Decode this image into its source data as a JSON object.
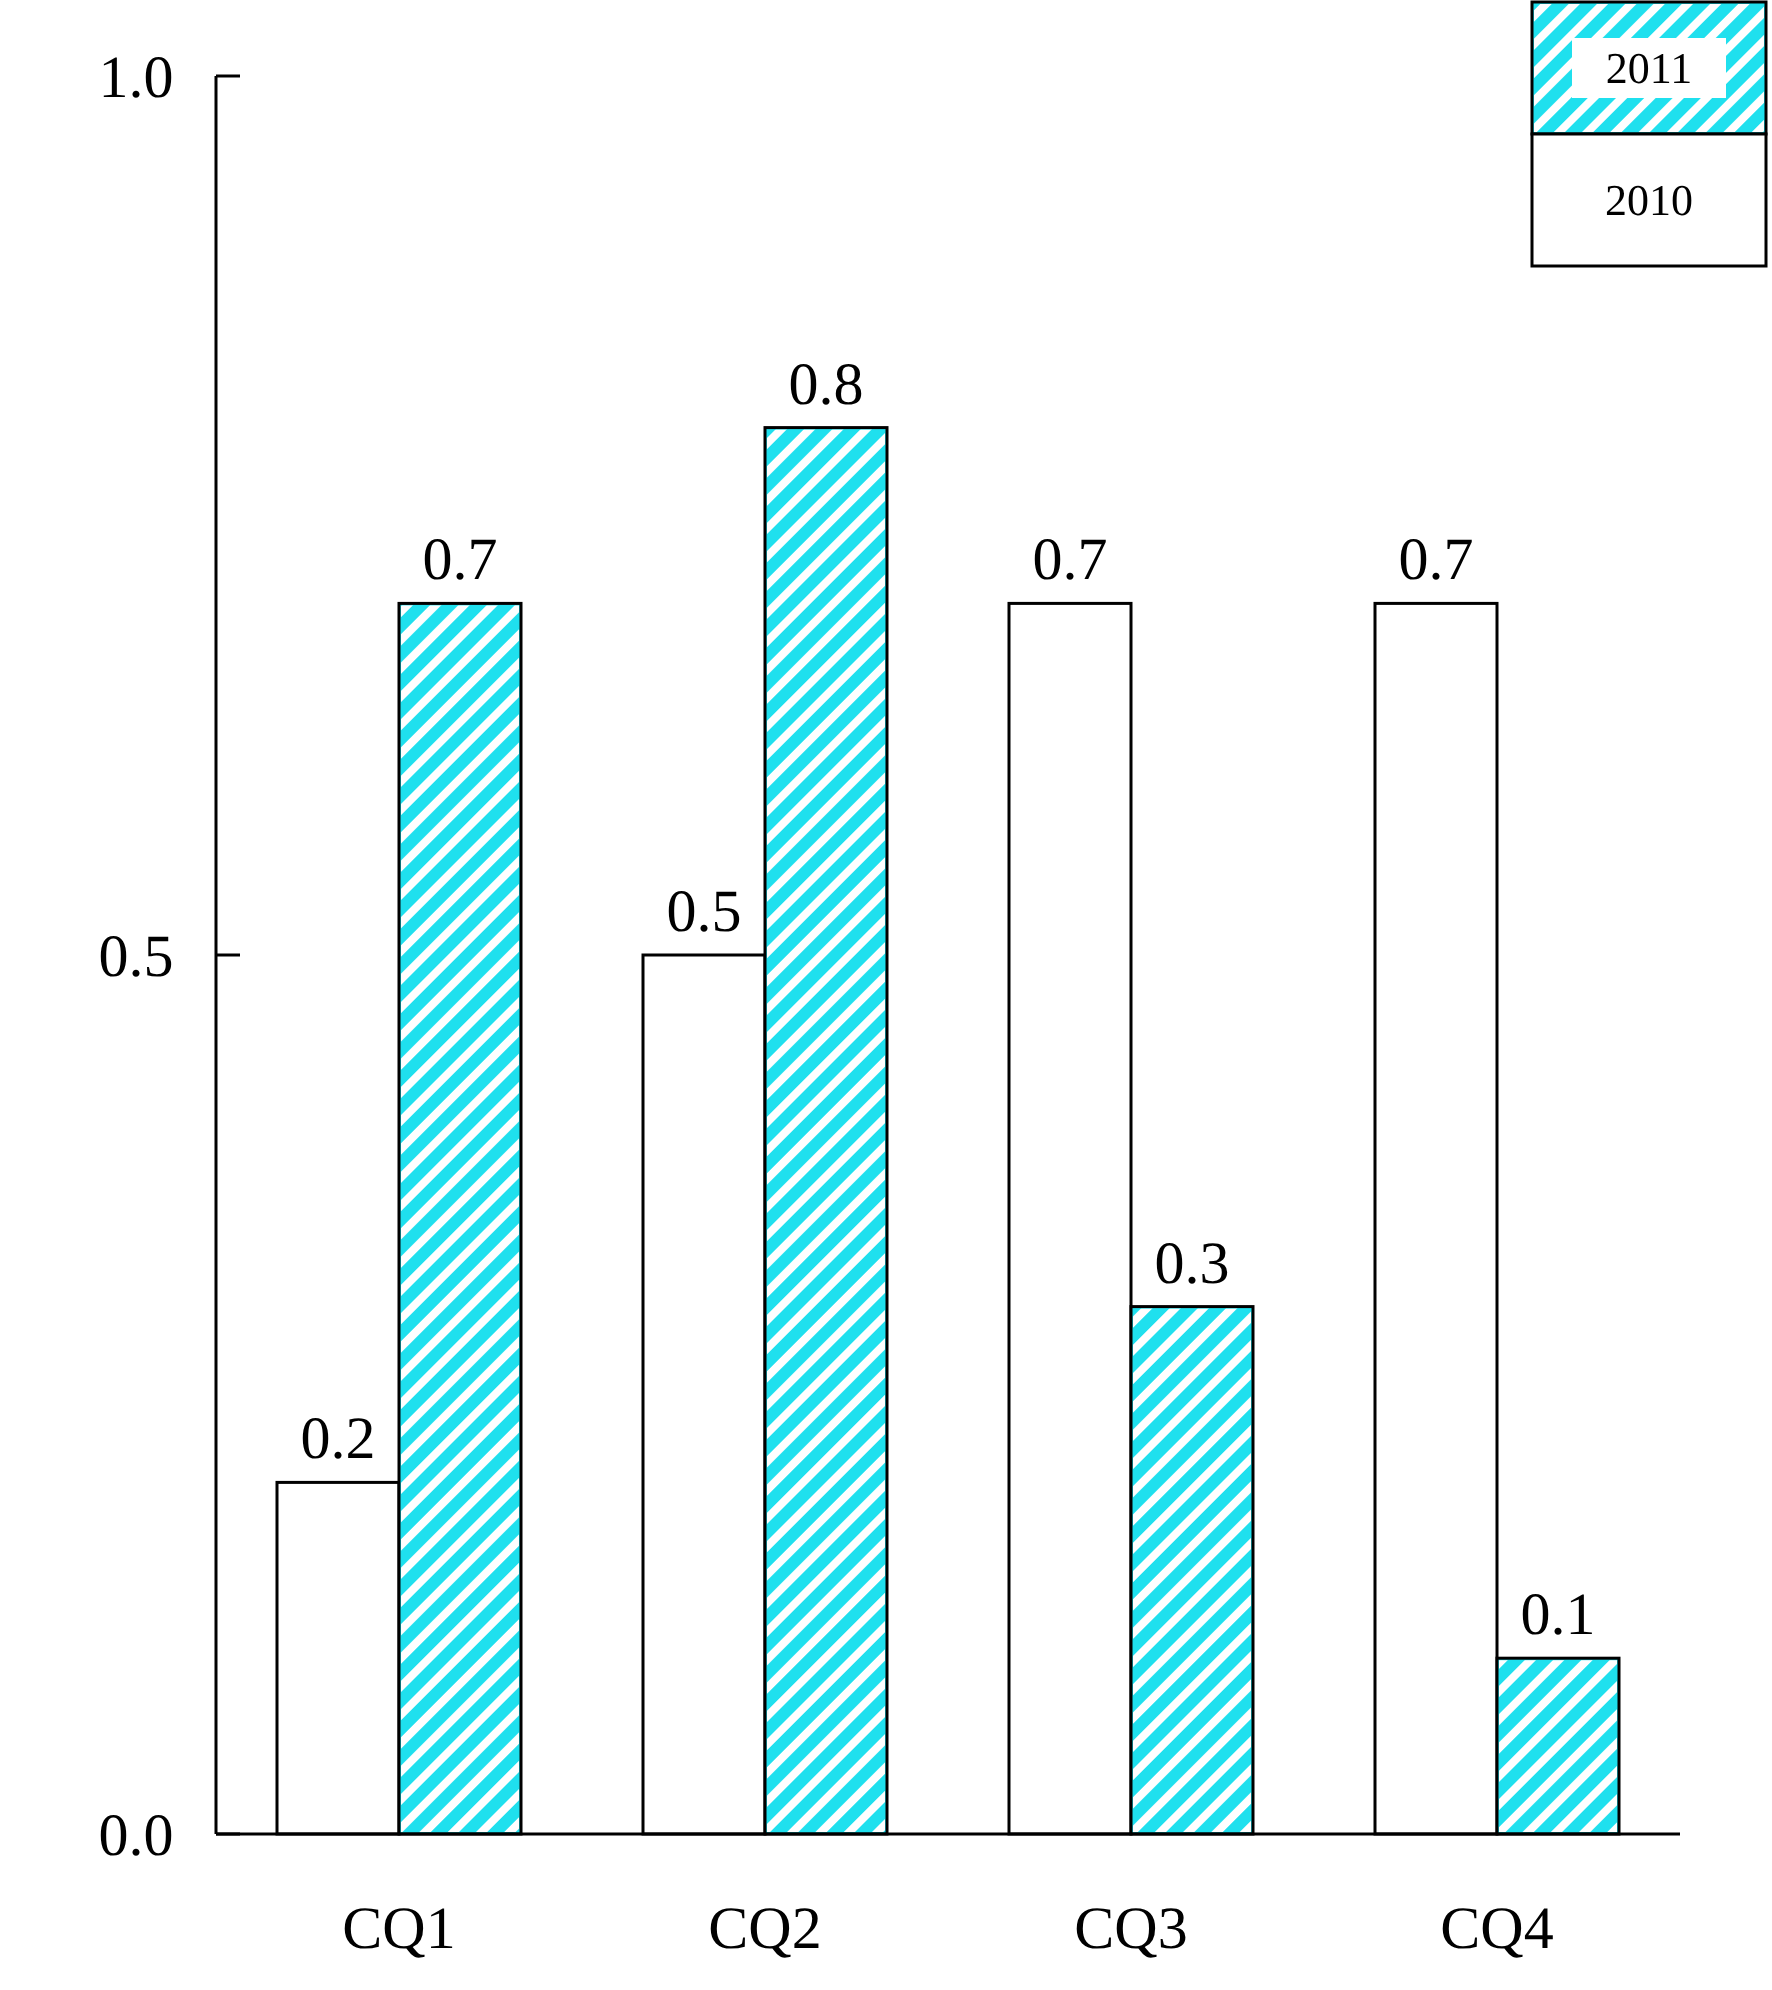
{
  "chart_data": {
    "type": "bar",
    "categories": [
      "CQ1",
      "CQ2",
      "CQ3",
      "CQ4"
    ],
    "series": [
      {
        "name": "2010",
        "color": "#ffffff",
        "values": [
          0.2,
          0.5,
          0.7,
          0.7
        ]
      },
      {
        "name": "2011",
        "color": "#1fe0ee",
        "values": [
          0.7,
          0.8,
          0.3,
          0.1
        ]
      }
    ],
    "ylim": [
      0,
      1
    ],
    "yticks": [
      {
        "value": 0,
        "label": "0.0"
      },
      {
        "value": 0.5,
        "label": "0.5"
      },
      {
        "value": 1,
        "label": "1.0"
      }
    ],
    "data_labels": true,
    "legend": "top right",
    "grid": false
  }
}
